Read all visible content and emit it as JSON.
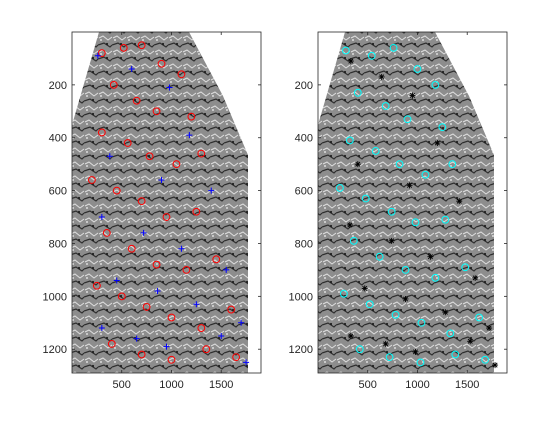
{
  "figure": {
    "background": "#ffffff",
    "axis_color": "#262626"
  },
  "chart_data": [
    {
      "type": "scatter",
      "panel": "left",
      "title": "",
      "xlabel": "",
      "ylabel": "",
      "xlim": [
        0,
        1900
      ],
      "ylim": [
        1290,
        0
      ],
      "y_reversed": true,
      "xticks": [
        500,
        1000,
        1500
      ],
      "xtick_labels": [
        "500",
        "1000",
        "1500"
      ],
      "yticks": [
        200,
        400,
        600,
        800,
        1000,
        1200
      ],
      "ytick_labels": [
        "200",
        "400",
        "600",
        "800",
        "1000",
        "1200"
      ],
      "grid": false,
      "legend": "none",
      "background_image": "grayscale textured specimen, tapered at top",
      "series": [
        {
          "marker": "circle",
          "color": "#ff0000",
          "values": [
            [
              300,
              80
            ],
            [
              520,
              60
            ],
            [
              700,
              50
            ],
            [
              900,
              120
            ],
            [
              1100,
              160
            ],
            [
              420,
              200
            ],
            [
              650,
              260
            ],
            [
              850,
              300
            ],
            [
              1200,
              320
            ],
            [
              300,
              380
            ],
            [
              560,
              420
            ],
            [
              780,
              470
            ],
            [
              1050,
              500
            ],
            [
              1300,
              460
            ],
            [
              200,
              560
            ],
            [
              450,
              600
            ],
            [
              700,
              640
            ],
            [
              950,
              700
            ],
            [
              1250,
              680
            ],
            [
              350,
              760
            ],
            [
              600,
              820
            ],
            [
              850,
              880
            ],
            [
              1150,
              900
            ],
            [
              1450,
              860
            ],
            [
              250,
              960
            ],
            [
              500,
              1000
            ],
            [
              750,
              1040
            ],
            [
              1000,
              1080
            ],
            [
              1300,
              1120
            ],
            [
              1600,
              1050
            ],
            [
              400,
              1180
            ],
            [
              700,
              1220
            ],
            [
              1000,
              1240
            ],
            [
              1350,
              1200
            ],
            [
              1650,
              1230
            ]
          ]
        },
        {
          "marker": "plus",
          "color": "#0000ff",
          "values": [
            [
              260,
              90
            ],
            [
              600,
              140
            ],
            [
              980,
              210
            ],
            [
              1180,
              390
            ],
            [
              380,
              470
            ],
            [
              900,
              560
            ],
            [
              1400,
              600
            ],
            [
              300,
              700
            ],
            [
              720,
              760
            ],
            [
              1100,
              820
            ],
            [
              1550,
              900
            ],
            [
              450,
              940
            ],
            [
              860,
              980
            ],
            [
              1250,
              1030
            ],
            [
              1700,
              1100
            ],
            [
              300,
              1120
            ],
            [
              650,
              1160
            ],
            [
              950,
              1190
            ],
            [
              1500,
              1150
            ],
            [
              1750,
              1250
            ]
          ]
        }
      ]
    },
    {
      "type": "scatter",
      "panel": "right",
      "title": "",
      "xlabel": "",
      "ylabel": "",
      "xlim": [
        0,
        1900
      ],
      "ylim": [
        1290,
        0
      ],
      "y_reversed": true,
      "xticks": [
        500,
        1000,
        1500
      ],
      "xtick_labels": [
        "500",
        "1000",
        "1500"
      ],
      "yticks": [
        200,
        400,
        600,
        800,
        1000,
        1200
      ],
      "ytick_labels": [
        "200",
        "400",
        "600",
        "800",
        "1000",
        "1200"
      ],
      "grid": false,
      "legend": "none",
      "background_image": "grayscale textured specimen, tapered at top",
      "series": [
        {
          "marker": "circle",
          "color": "#00ffff",
          "values": [
            [
              280,
              70
            ],
            [
              540,
              90
            ],
            [
              760,
              60
            ],
            [
              1000,
              140
            ],
            [
              1180,
              200
            ],
            [
              400,
              230
            ],
            [
              680,
              280
            ],
            [
              900,
              330
            ],
            [
              1250,
              360
            ],
            [
              320,
              410
            ],
            [
              580,
              450
            ],
            [
              820,
              500
            ],
            [
              1080,
              540
            ],
            [
              1350,
              500
            ],
            [
              220,
              590
            ],
            [
              480,
              630
            ],
            [
              740,
              680
            ],
            [
              980,
              720
            ],
            [
              1280,
              710
            ],
            [
              360,
              790
            ],
            [
              620,
              850
            ],
            [
              880,
              900
            ],
            [
              1180,
              930
            ],
            [
              1480,
              890
            ],
            [
              260,
              990
            ],
            [
              520,
              1030
            ],
            [
              780,
              1070
            ],
            [
              1040,
              1100
            ],
            [
              1330,
              1140
            ],
            [
              1620,
              1080
            ],
            [
              420,
              1200
            ],
            [
              720,
              1230
            ],
            [
              1030,
              1250
            ],
            [
              1380,
              1220
            ],
            [
              1680,
              1240
            ]
          ]
        },
        {
          "marker": "asterisk",
          "color": "#000000",
          "values": [
            [
              330,
              110
            ],
            [
              640,
              170
            ],
            [
              950,
              240
            ],
            [
              1200,
              420
            ],
            [
              400,
              500
            ],
            [
              920,
              580
            ],
            [
              1420,
              640
            ],
            [
              320,
              730
            ],
            [
              740,
              790
            ],
            [
              1130,
              850
            ],
            [
              1580,
              930
            ],
            [
              470,
              970
            ],
            [
              880,
              1010
            ],
            [
              1280,
              1060
            ],
            [
              1720,
              1120
            ],
            [
              330,
              1150
            ],
            [
              680,
              1180
            ],
            [
              980,
              1210
            ],
            [
              1530,
              1170
            ],
            [
              1780,
              1260
            ]
          ]
        }
      ]
    }
  ]
}
